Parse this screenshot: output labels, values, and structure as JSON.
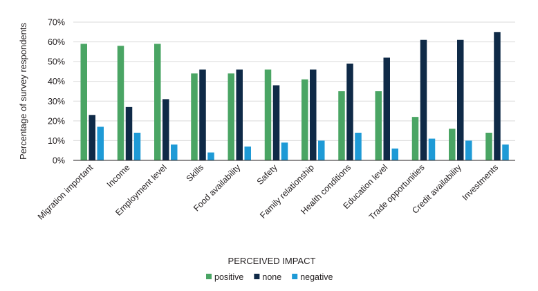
{
  "chart_data": {
    "type": "bar",
    "categories": [
      "Migration important",
      "Income",
      "Employment level",
      "Skills",
      "Food availability",
      "Safety",
      "Family relationship",
      "Health conditions",
      "Education level",
      "Trade opportunities",
      "Credit availability",
      "Investments"
    ],
    "series": [
      {
        "name": "positive",
        "color": "#4aa564",
        "values": [
          59,
          58,
          59,
          44,
          44,
          46,
          41,
          35,
          35,
          22,
          16,
          14
        ]
      },
      {
        "name": "none",
        "color": "#0f2a47",
        "values": [
          23,
          27,
          31,
          46,
          46,
          38,
          46,
          49,
          52,
          61,
          61,
          65
        ]
      },
      {
        "name": "negative",
        "color": "#1e9ad6",
        "values": [
          17,
          14,
          8,
          4,
          7,
          9,
          10,
          14,
          6,
          11,
          10,
          8
        ]
      }
    ],
    "xlabel": "PERCEIVED IMPACT",
    "ylabel": "Percentage of survey respondents",
    "ylim": [
      0,
      70
    ],
    "yticks": [
      "0%",
      "10%",
      "20%",
      "30%",
      "40%",
      "50%",
      "60%",
      "70%"
    ],
    "grid": true,
    "legend": "bottom-center"
  }
}
